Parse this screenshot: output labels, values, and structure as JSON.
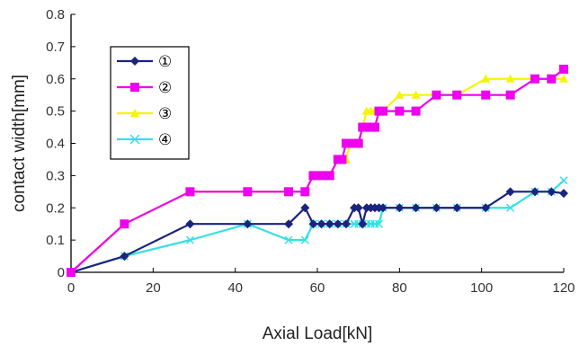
{
  "chart_data": {
    "type": "line",
    "title": "",
    "xlabel": "Axial Load[kN]",
    "ylabel": "contact width[mm]",
    "xlim": [
      0,
      120
    ],
    "ylim": [
      0,
      0.8
    ],
    "xticks": [
      "0",
      "20",
      "40",
      "60",
      "80",
      "100",
      "120"
    ],
    "yticks": [
      "0",
      "0.1",
      "0.2",
      "0.3",
      "0.4",
      "0.5",
      "0.6",
      "0.7",
      "0.8"
    ],
    "grid": false,
    "legend_position": "top-left",
    "series": [
      {
        "name": "①",
        "color": "#1a237e",
        "marker": "diamond",
        "smooth": false,
        "points": [
          [
            0,
            0
          ],
          [
            13,
            0.05
          ],
          [
            29,
            0.15
          ],
          [
            43,
            0.15
          ],
          [
            53,
            0.15
          ],
          [
            57,
            0.2
          ],
          [
            59,
            0.15
          ],
          [
            61,
            0.15
          ],
          [
            63,
            0.15
          ],
          [
            65,
            0.15
          ],
          [
            67,
            0.15
          ],
          [
            69,
            0.2
          ],
          [
            70,
            0.2
          ],
          [
            71,
            0.15
          ],
          [
            72,
            0.2
          ],
          [
            73,
            0.2
          ],
          [
            74,
            0.2
          ],
          [
            75,
            0.2
          ],
          [
            76,
            0.2
          ],
          [
            80,
            0.2
          ],
          [
            84,
            0.2
          ],
          [
            89,
            0.2
          ],
          [
            94,
            0.2
          ],
          [
            101,
            0.2
          ],
          [
            107,
            0.25
          ],
          [
            113,
            0.25
          ],
          [
            117,
            0.25
          ],
          [
            120,
            0.245
          ]
        ]
      },
      {
        "name": "②",
        "color": "#ee00ee",
        "marker": "square",
        "smooth": false,
        "points": [
          [
            0,
            0
          ],
          [
            13,
            0.15
          ],
          [
            29,
            0.25
          ],
          [
            43,
            0.25
          ],
          [
            53,
            0.25
          ],
          [
            57,
            0.25
          ],
          [
            59,
            0.3
          ],
          [
            61,
            0.3
          ],
          [
            63,
            0.3
          ],
          [
            65,
            0.35
          ],
          [
            66,
            0.35
          ],
          [
            67,
            0.4
          ],
          [
            68,
            0.4
          ],
          [
            69,
            0.4
          ],
          [
            70,
            0.4
          ],
          [
            71,
            0.45
          ],
          [
            72,
            0.45
          ],
          [
            73,
            0.45
          ],
          [
            74,
            0.45
          ],
          [
            75,
            0.5
          ],
          [
            76,
            0.5
          ],
          [
            80,
            0.5
          ],
          [
            84,
            0.5
          ],
          [
            89,
            0.55
          ],
          [
            94,
            0.55
          ],
          [
            101,
            0.55
          ],
          [
            107,
            0.55
          ],
          [
            113,
            0.6
          ],
          [
            117,
            0.6
          ],
          [
            120,
            0.63
          ]
        ]
      },
      {
        "name": "③",
        "color": "#f5f500",
        "marker": "triangle",
        "smooth": false,
        "points": [
          [
            0,
            0
          ],
          [
            13,
            0.15
          ],
          [
            29,
            0.25
          ],
          [
            43,
            0.25
          ],
          [
            53,
            0.25
          ],
          [
            57,
            0.25
          ],
          [
            59,
            0.3
          ],
          [
            61,
            0.3
          ],
          [
            63,
            0.3
          ],
          [
            65,
            0.35
          ],
          [
            67,
            0.35
          ],
          [
            68,
            0.4
          ],
          [
            69,
            0.4
          ],
          [
            70,
            0.4
          ],
          [
            71,
            0.45
          ],
          [
            72,
            0.5
          ],
          [
            73,
            0.5
          ],
          [
            74,
            0.5
          ],
          [
            75,
            0.5
          ],
          [
            76,
            0.5
          ],
          [
            80,
            0.55
          ],
          [
            84,
            0.55
          ],
          [
            89,
            0.55
          ],
          [
            94,
            0.55
          ],
          [
            101,
            0.6
          ],
          [
            107,
            0.6
          ],
          [
            113,
            0.6
          ],
          [
            117,
            0.6
          ],
          [
            120,
            0.6
          ]
        ]
      },
      {
        "name": "④",
        "color": "#33e0e6",
        "marker": "x",
        "smooth": false,
        "points": [
          [
            0,
            0
          ],
          [
            13,
            0.05
          ],
          [
            29,
            0.1
          ],
          [
            43,
            0.15
          ],
          [
            53,
            0.1
          ],
          [
            57,
            0.1
          ],
          [
            59,
            0.15
          ],
          [
            61,
            0.15
          ],
          [
            63,
            0.15
          ],
          [
            65,
            0.15
          ],
          [
            67,
            0.15
          ],
          [
            69,
            0.15
          ],
          [
            70,
            0.15
          ],
          [
            71,
            0.15
          ],
          [
            72,
            0.15
          ],
          [
            73,
            0.15
          ],
          [
            74,
            0.15
          ],
          [
            75,
            0.15
          ],
          [
            76,
            0.2
          ],
          [
            80,
            0.2
          ],
          [
            84,
            0.2
          ],
          [
            89,
            0.2
          ],
          [
            94,
            0.2
          ],
          [
            101,
            0.2
          ],
          [
            107,
            0.2
          ],
          [
            113,
            0.25
          ],
          [
            117,
            0.25
          ],
          [
            120,
            0.285
          ]
        ]
      }
    ]
  }
}
